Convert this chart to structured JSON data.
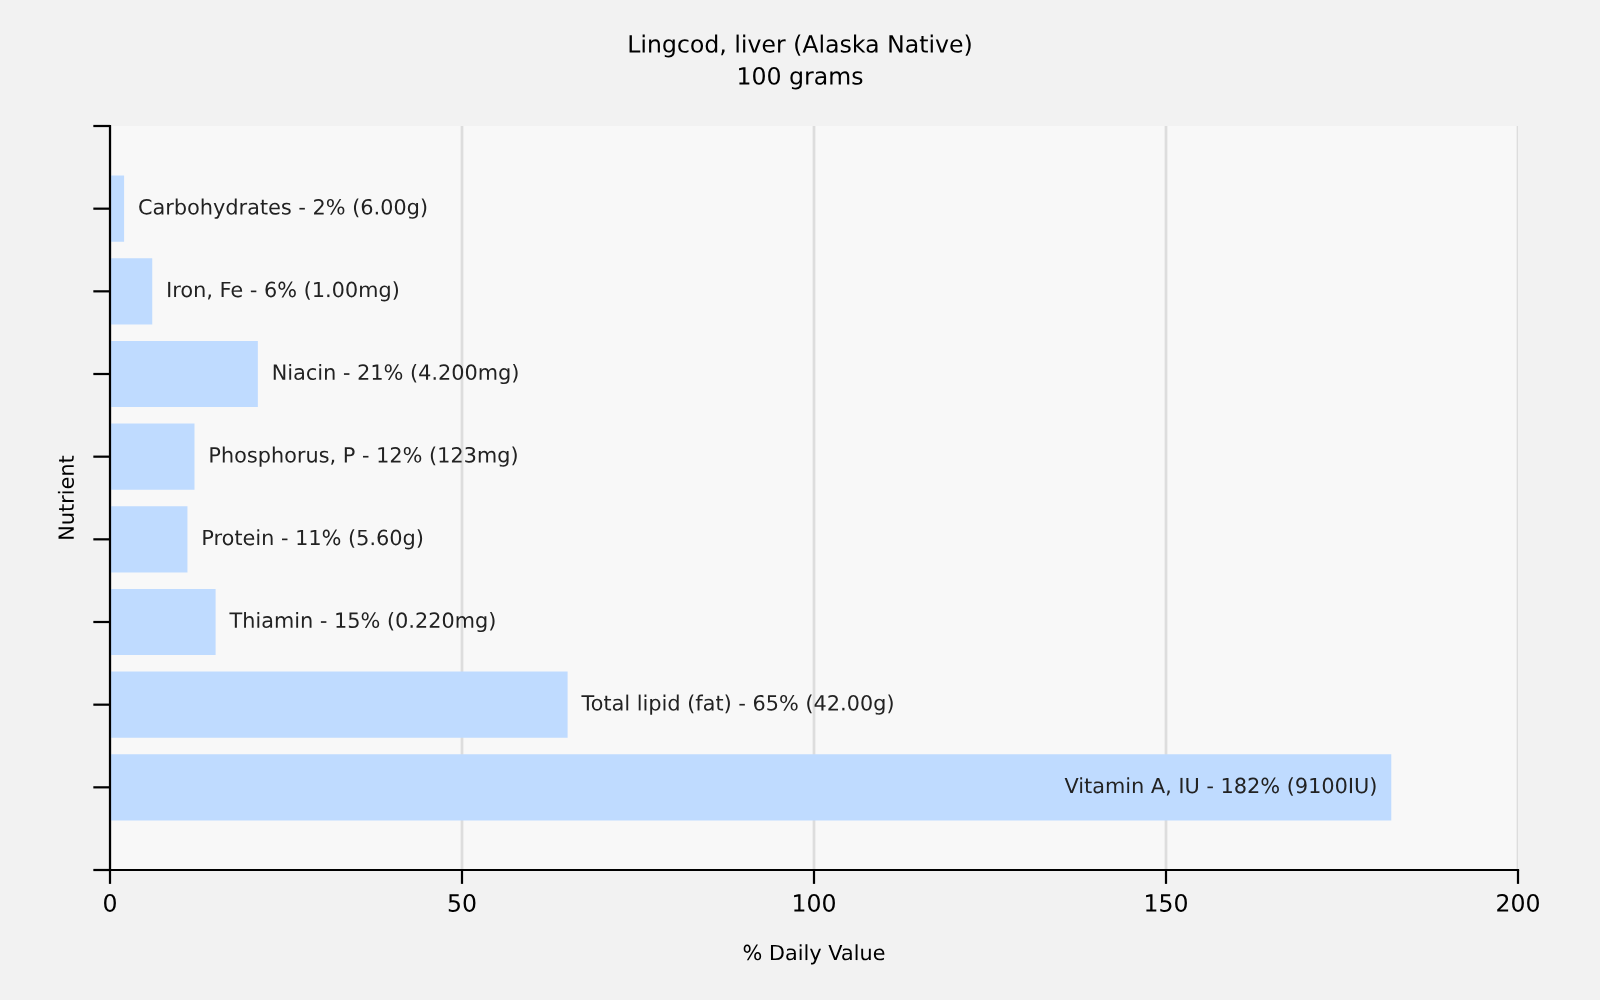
{
  "chart_data": {
    "type": "bar",
    "orientation": "horizontal",
    "title": "Lingcod, liver (Alaska Native)",
    "subtitle": "100 grams",
    "xlabel": "% Daily Value",
    "ylabel": "Nutrient",
    "categories": [
      "Carbohydrates - 2% (6.00g)",
      "Iron, Fe - 6% (1.00mg)",
      "Niacin - 21% (4.200mg)",
      "Phosphorus, P - 12% (123mg)",
      "Protein - 11% (5.60g)",
      "Thiamin - 15% (0.220mg)",
      "Total lipid (fat) - 65% (42.00g)",
      "Vitamin A, IU - 182% (9100IU)"
    ],
    "values": [
      2,
      6,
      21,
      12,
      11,
      15,
      65,
      182
    ],
    "color": "#bfdbff",
    "xlim": [
      0,
      200
    ],
    "xticks": [
      0,
      50,
      100,
      150,
      200
    ],
    "grid": "x",
    "tick_labels": "x",
    "legend": false
  }
}
